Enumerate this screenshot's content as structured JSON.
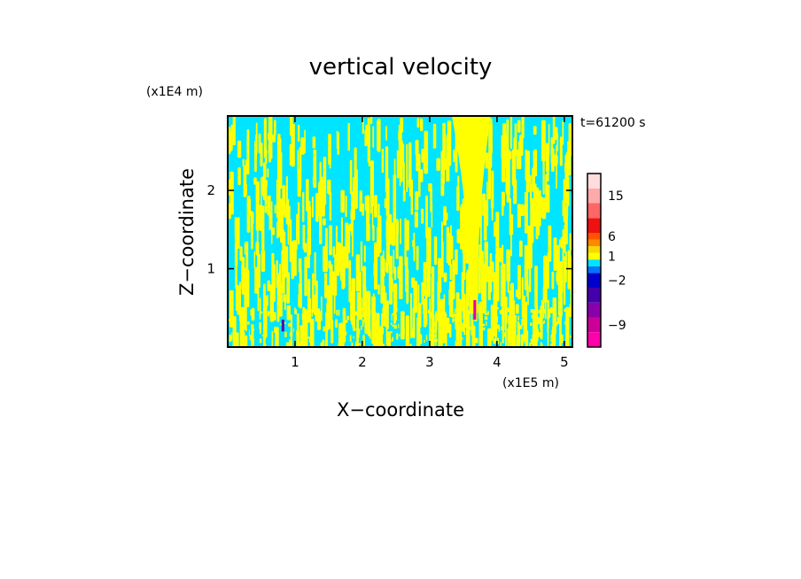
{
  "chart_data": {
    "type": "heatmap",
    "title": "vertical velocity",
    "xlabel": "X−coordinate",
    "ylabel": "Z−coordinate",
    "x_unit": "(x1E5 m)",
    "y_unit": "(x1E4 m)",
    "time_label": "t=61200 s",
    "xlim": [
      0,
      5.12
    ],
    "ylim": [
      0,
      2.95
    ],
    "x_ticks": [
      1,
      2,
      3,
      4,
      5
    ],
    "x_tick_labels": [
      "1",
      "2",
      "3",
      "4",
      "5"
    ],
    "y_ticks": [
      1,
      2
    ],
    "y_tick_labels": [
      "1",
      "2"
    ],
    "background_color": "#00e5ff",
    "updraft_color": "#ffff00",
    "features": [
      {
        "kind": "convective_plume",
        "x_center": 3.65,
        "z_top": 2.95,
        "z_narrow": 0.65,
        "half_width_top": 0.32,
        "half_width_base": 0.07
      },
      {
        "kind": "strong_downdraft",
        "x": 3.67,
        "z_bottom": 0.35,
        "z_top": 0.6,
        "color": "#dd00aa"
      },
      {
        "kind": "strong_downdraft",
        "x": 0.82,
        "z_bottom": 0.2,
        "z_top": 0.35,
        "color": "#5500aa"
      }
    ],
    "colorbar": {
      "levels": [
        -12,
        -9,
        -6,
        -4,
        -2,
        -1,
        0,
        1,
        2,
        4,
        6,
        9,
        12,
        15,
        20,
        25
      ],
      "tick_labels": [
        "15",
        "6",
        "1",
        "−2",
        "−9"
      ],
      "colors": [
        "#ff00aa",
        "#cc0099",
        "#8800aa",
        "#4400aa",
        "#0000cc",
        "#0077ff",
        "#00e5ff",
        "#ffff00",
        "#f5d800",
        "#ff8800",
        "#ff5500",
        "#ee1111",
        "#ff6666",
        "#ffaaaa",
        "#ffdddd"
      ]
    }
  }
}
